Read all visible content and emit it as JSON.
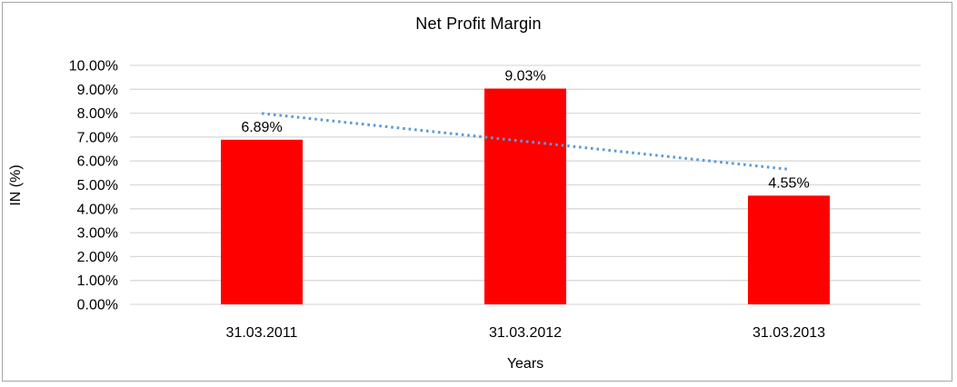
{
  "chart_data": {
    "type": "bar",
    "title": "Net Profit Margin",
    "xlabel": "Years",
    "ylabel": "IN (%)",
    "categories": [
      "31.03.2011",
      "31.03.2012",
      "31.03.2013"
    ],
    "values": [
      6.89,
      9.03,
      4.55
    ],
    "data_labels": [
      "6.89%",
      "9.03%",
      "4.55%"
    ],
    "y_ticks": [
      "0.00%",
      "1.00%",
      "2.00%",
      "3.00%",
      "4.00%",
      "5.00%",
      "6.00%",
      "7.00%",
      "8.00%",
      "9.00%",
      "10.00%"
    ],
    "ylim": [
      0,
      10
    ],
    "grid": "horizontal",
    "legend": "none",
    "bar_color": "#ff0000",
    "gridline_color": "#d9d9d9",
    "frame_border_color": "#a6a6a6",
    "trendline": {
      "type": "linear",
      "style": "dotted",
      "color": "#5b9bd5",
      "start_value": 7.99,
      "end_value": 5.65
    }
  }
}
